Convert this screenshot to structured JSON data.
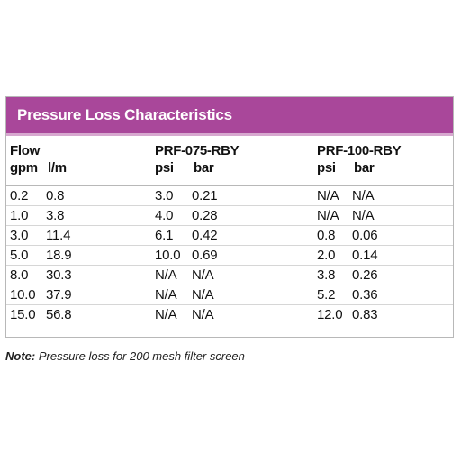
{
  "table": {
    "title": "Pressure Loss Characteristics",
    "header": {
      "flow": "Flow",
      "gpm": "gpm",
      "lpm": "l/m",
      "model_a": "PRF-075-RBY",
      "model_a_psi": "psi",
      "model_a_bar": "bar",
      "model_b": "PRF-100-RBY",
      "model_b_psi": "psi",
      "model_b_bar": "bar"
    },
    "rows": [
      [
        "0.2",
        "0.8",
        "3.0",
        "0.21",
        "N/A",
        "N/A"
      ],
      [
        "1.0",
        "3.8",
        "4.0",
        "0.28",
        "N/A",
        "N/A"
      ],
      [
        "3.0",
        "11.4",
        "6.1",
        "0.42",
        "0.8",
        "0.06"
      ],
      [
        "5.0",
        "18.9",
        "10.0",
        "0.69",
        "2.0",
        "0.14"
      ],
      [
        "8.0",
        "30.3",
        "N/A",
        "N/A",
        "3.8",
        "0.26"
      ],
      [
        "10.0",
        "37.9",
        "N/A",
        "N/A",
        "5.2",
        "0.36"
      ],
      [
        "15.0",
        "56.8",
        "N/A",
        "N/A",
        "12.0",
        "0.83"
      ]
    ]
  },
  "note": {
    "label": "Note:",
    "text": "Pressure loss for 200 mesh filter screen"
  },
  "colors": {
    "title_bar": "#a9479a",
    "title_underline": "#d7a8cf",
    "title_text": "#ffffff"
  }
}
